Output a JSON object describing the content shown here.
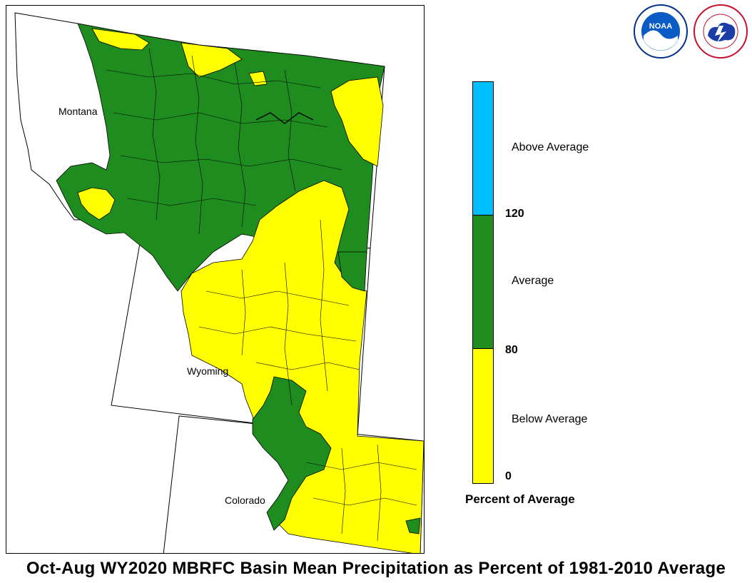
{
  "title": "Oct-Aug WY2020 MBRFC Basin Mean Precipitation as Percent of 1981-2010 Average",
  "map": {
    "state_labels": {
      "montana": "Montana",
      "wyoming": "Wyoming",
      "colorado": "Colorado"
    }
  },
  "legend": {
    "title": "Percent of Average",
    "categories": [
      {
        "label": "Above Average",
        "color": "#00bfff"
      },
      {
        "label": "Average",
        "color": "#1e8c1e"
      },
      {
        "label": "Below Average",
        "color": "#ffff00"
      }
    ],
    "ticks": {
      "upper": "120",
      "middle": "80",
      "lower": "0"
    }
  },
  "logos": [
    "noaa-logo",
    "national-weather-service-logo"
  ],
  "colors": {
    "below": "#ffff00",
    "average": "#1e8c1e",
    "above": "#00bfff",
    "background": "#ffffff"
  }
}
